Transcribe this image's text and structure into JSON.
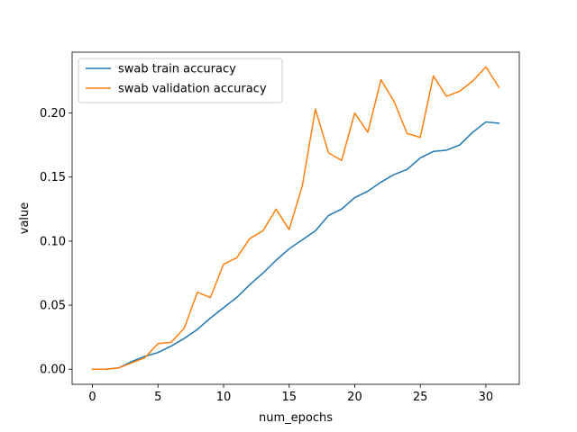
{
  "chart_data": {
    "type": "line",
    "title": "",
    "xlabel": "num_epochs",
    "ylabel": "value",
    "xlim": [
      -1.55,
      32.55
    ],
    "ylim": [
      -0.0118,
      0.2475
    ],
    "xticks": [
      0,
      5,
      10,
      15,
      20,
      25,
      30
    ],
    "yticks": [
      0.0,
      0.05,
      0.1,
      0.15,
      0.2
    ],
    "xtick_labels": [
      "0",
      "5",
      "10",
      "15",
      "20",
      "25",
      "30"
    ],
    "ytick_labels": [
      "0.00",
      "0.05",
      "0.10",
      "0.15",
      "0.20"
    ],
    "grid": false,
    "legend": "top-left",
    "x": [
      0,
      1,
      2,
      3,
      4,
      5,
      6,
      7,
      8,
      9,
      10,
      11,
      12,
      13,
      14,
      15,
      16,
      17,
      18,
      19,
      20,
      21,
      22,
      23,
      24,
      25,
      26,
      27,
      28,
      29,
      30,
      31
    ],
    "series": [
      {
        "name": "swab train accuracy",
        "color": "#1f77b4",
        "values": [
          0.0,
          0.0,
          0.001,
          0.006,
          0.01,
          0.013,
          0.018,
          0.024,
          0.031,
          0.04,
          0.048,
          0.056,
          0.066,
          0.075,
          0.085,
          0.094,
          0.101,
          0.108,
          0.12,
          0.125,
          0.134,
          0.139,
          0.146,
          0.152,
          0.156,
          0.165,
          0.17,
          0.171,
          0.175,
          0.185,
          0.193,
          0.192
        ]
      },
      {
        "name": "swab validation accuracy",
        "color": "#ff7f0e",
        "values": [
          0.0,
          0.0,
          0.001,
          0.005,
          0.009,
          0.02,
          0.021,
          0.032,
          0.06,
          0.056,
          0.082,
          0.087,
          0.102,
          0.108,
          0.125,
          0.109,
          0.143,
          0.203,
          0.169,
          0.163,
          0.2,
          0.185,
          0.226,
          0.209,
          0.184,
          0.181,
          0.229,
          0.213,
          0.217,
          0.225,
          0.236,
          0.22
        ]
      }
    ]
  }
}
